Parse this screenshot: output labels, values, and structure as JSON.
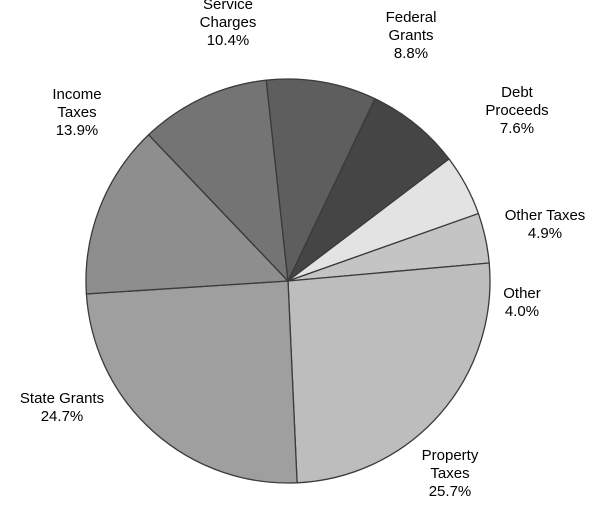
{
  "chart_data": {
    "type": "pie",
    "slices": [
      {
        "label": [
          "Debt",
          "Proceeds"
        ],
        "value": 7.6,
        "value_label": "7.6%",
        "color": "#454545"
      },
      {
        "label": [
          "Other Taxes"
        ],
        "value": 4.9,
        "value_label": "4.9%",
        "color": "#e3e3e3"
      },
      {
        "label": [
          "Other"
        ],
        "value": 4.0,
        "value_label": "4.0%",
        "color": "#c4c4c4"
      },
      {
        "label": [
          "Property",
          "Taxes"
        ],
        "value": 25.7,
        "value_label": "25.7%",
        "color": "#bdbdbd"
      },
      {
        "label": [
          "State Grants"
        ],
        "value": 24.7,
        "value_label": "24.7%",
        "color": "#9f9f9f"
      },
      {
        "label": [
          "Income",
          "Taxes"
        ],
        "value": 13.9,
        "value_label": "13.9%",
        "color": "#8e8e8e"
      },
      {
        "label": [
          "Service",
          "Charges"
        ],
        "value": 10.4,
        "value_label": "10.4%",
        "color": "#747474"
      },
      {
        "label": [
          "Federal",
          "Grants"
        ],
        "value": 8.8,
        "value_label": "8.8%",
        "color": "#5e5e5e"
      }
    ]
  }
}
